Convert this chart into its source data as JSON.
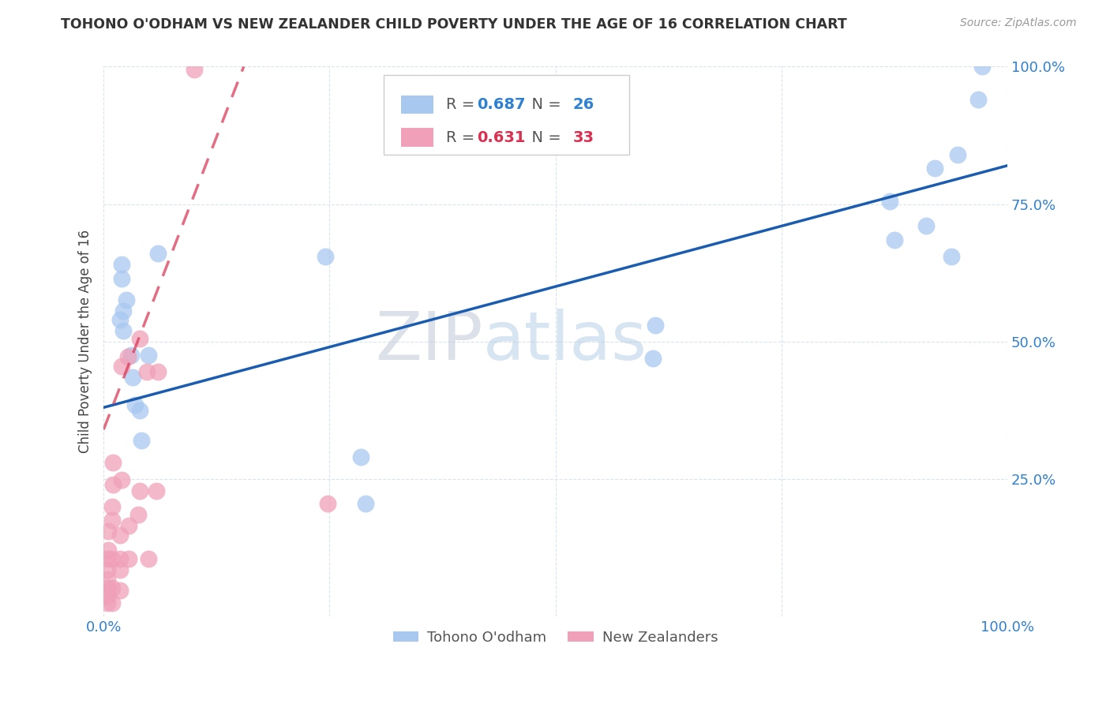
{
  "title": "TOHONO O'ODHAM VS NEW ZEALANDER CHILD POVERTY UNDER THE AGE OF 16 CORRELATION CHART",
  "source": "Source: ZipAtlas.com",
  "ylabel": "Child Poverty Under the Age of 16",
  "xlim": [
    0.0,
    1.0
  ],
  "ylim": [
    0.0,
    1.0
  ],
  "xticks": [
    0.0,
    0.25,
    0.5,
    0.75,
    1.0
  ],
  "yticks": [
    0.0,
    0.25,
    0.5,
    0.75,
    1.0
  ],
  "xticklabels": [
    "0.0%",
    "",
    "",
    "",
    "100.0%"
  ],
  "yticklabels": [
    "",
    "25.0%",
    "50.0%",
    "75.0%",
    "100.0%"
  ],
  "blue_color": "#A8C8F0",
  "pink_color": "#F0A0B8",
  "blue_line_color": "#1A5CB0",
  "pink_line_color": "#D83050",
  "watermark_zip": "ZIP",
  "watermark_atlas": "atlas",
  "legend_R_blue": "0.687",
  "legend_N_blue": "26",
  "legend_R_pink": "0.631",
  "legend_N_pink": "33",
  "blue_scatter_x": [
    0.022,
    0.022,
    0.025,
    0.03,
    0.032,
    0.035,
    0.04,
    0.042,
    0.05,
    0.06,
    0.29,
    0.285,
    0.245,
    0.61,
    0.875,
    0.87,
    0.91,
    0.938,
    0.945,
    0.92,
    0.608,
    0.02,
    0.02,
    0.018,
    0.968,
    0.972
  ],
  "blue_scatter_y": [
    0.555,
    0.52,
    0.575,
    0.475,
    0.435,
    0.385,
    0.375,
    0.32,
    0.475,
    0.66,
    0.205,
    0.29,
    0.655,
    0.53,
    0.685,
    0.755,
    0.71,
    0.655,
    0.84,
    0.815,
    0.47,
    0.615,
    0.64,
    0.54,
    0.94,
    1.0
  ],
  "pink_scatter_x": [
    0.004,
    0.004,
    0.004,
    0.004,
    0.004,
    0.004,
    0.005,
    0.005,
    0.009,
    0.009,
    0.009,
    0.009,
    0.009,
    0.01,
    0.01,
    0.018,
    0.018,
    0.018,
    0.018,
    0.02,
    0.02,
    0.028,
    0.028,
    0.027,
    0.038,
    0.04,
    0.048,
    0.05,
    0.058,
    0.06,
    0.1,
    0.248,
    0.04
  ],
  "pink_scatter_y": [
    0.025,
    0.038,
    0.052,
    0.068,
    0.085,
    0.105,
    0.12,
    0.155,
    0.025,
    0.052,
    0.105,
    0.175,
    0.2,
    0.24,
    0.28,
    0.048,
    0.085,
    0.105,
    0.148,
    0.248,
    0.455,
    0.105,
    0.165,
    0.472,
    0.185,
    0.228,
    0.445,
    0.105,
    0.228,
    0.445,
    0.995,
    0.205,
    0.505
  ],
  "blue_trendline_x": [
    0.0,
    1.0
  ],
  "blue_trendline_y": [
    0.38,
    0.82
  ],
  "pink_trendline_x": [
    0.0,
    0.155
  ],
  "pink_trendline_y": [
    0.34,
    1.0
  ],
  "bottom_legend": [
    "Tohono O'odham",
    "New Zealanders"
  ]
}
